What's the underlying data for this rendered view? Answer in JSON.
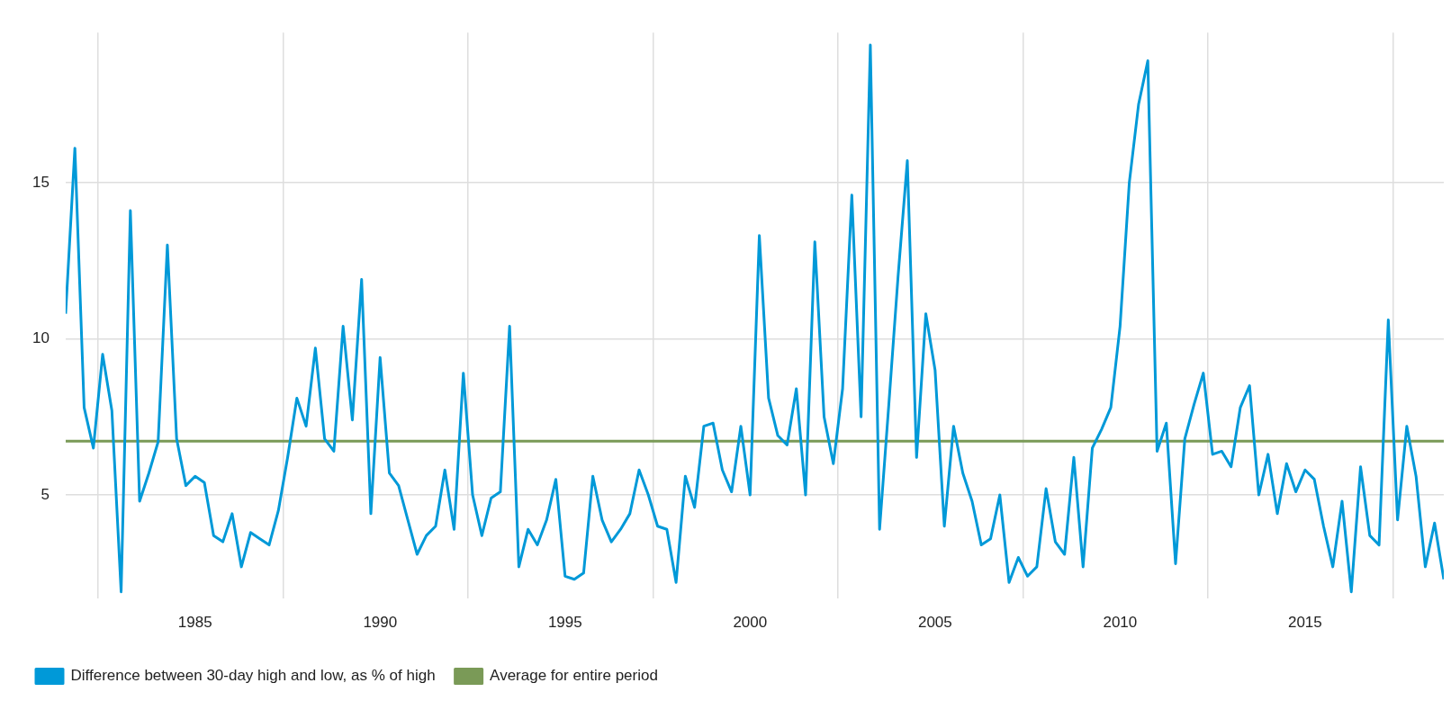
{
  "chart_data": {
    "type": "line",
    "xlim": [
      1981.5,
      2018.75
    ],
    "ylim": [
      1.7,
      19.8
    ],
    "xticks": [
      {
        "value": 1982.375,
        "label": null
      },
      {
        "value": 1985,
        "label": "1985"
      },
      {
        "value": 1987.375,
        "label": null
      },
      {
        "value": 1990,
        "label": "1990"
      },
      {
        "value": 1992.375,
        "label": null
      },
      {
        "value": 1995,
        "label": "1995"
      },
      {
        "value": 1997.375,
        "label": null
      },
      {
        "value": 2000,
        "label": "2000"
      },
      {
        "value": 2002.375,
        "label": null
      },
      {
        "value": 2005,
        "label": "2005"
      },
      {
        "value": 2007.375,
        "label": null
      },
      {
        "value": 2010,
        "label": "2010"
      },
      {
        "value": 2012.375,
        "label": null
      },
      {
        "value": 2015,
        "label": "2015"
      },
      {
        "value": 2017.375,
        "label": null
      }
    ],
    "yticks": [
      5,
      10,
      15
    ],
    "grid": true,
    "legend": "bottom left",
    "series": [
      {
        "name": "Difference between 30-day high and low, as % of high",
        "color": "#0099d8",
        "x": [
          1981.5,
          1981.75,
          1982,
          1982.25,
          1982.5,
          1982.75,
          1983,
          1983.25,
          1983.5,
          1983.75,
          1984,
          1984.25,
          1984.5,
          1984.75,
          1985,
          1985.25,
          1985.5,
          1985.75,
          1986,
          1986.25,
          1986.5,
          1986.75,
          1987,
          1987.25,
          1987.5,
          1987.75,
          1988,
          1988.25,
          1988.5,
          1988.75,
          1989,
          1989.25,
          1989.5,
          1989.75,
          1990,
          1990.25,
          1990.5,
          1990.75,
          1991,
          1991.25,
          1991.5,
          1991.75,
          1992,
          1992.25,
          1992.5,
          1992.75,
          1993,
          1993.25,
          1993.5,
          1993.75,
          1994,
          1994.25,
          1994.5,
          1994.75,
          1995,
          1995.25,
          1995.5,
          1995.75,
          1996,
          1996.25,
          1996.5,
          1996.75,
          1997,
          1997.25,
          1997.5,
          1997.75,
          1998,
          1998.25,
          1998.5,
          1998.75,
          1999,
          1999.25,
          1999.5,
          1999.75,
          2000,
          2000.25,
          2000.5,
          2000.75,
          2001,
          2001.25,
          2001.5,
          2001.75,
          2002,
          2002.25,
          2002.5,
          2002.75,
          2003,
          2003.25,
          2003.5,
          2003.75,
          2004,
          2004.25,
          2004.5,
          2004.75,
          2005,
          2005.25,
          2005.5,
          2005.75,
          2006,
          2006.25,
          2006.5,
          2006.75,
          2007,
          2007.25,
          2007.5,
          2007.75,
          2008,
          2008.25,
          2008.5,
          2008.75,
          2009,
          2009.25,
          2009.5,
          2009.75,
          2010,
          2010.25,
          2010.5,
          2010.75,
          2011,
          2011.25,
          2011.5,
          2011.75,
          2012,
          2012.25,
          2012.5,
          2012.75,
          2013,
          2013.25,
          2013.5,
          2013.75,
          2014,
          2014.25,
          2014.5,
          2014.75,
          2015,
          2015.25,
          2015.5,
          2015.75,
          2016,
          2016.25,
          2016.5,
          2016.75,
          2017,
          2017.25,
          2017.5,
          2017.75,
          2018,
          2018.25,
          2018.5,
          2018.75
        ],
        "values": [
          10.8,
          16.1,
          7.8,
          6.5,
          9.5,
          7.7,
          1.9,
          14.1,
          4.8,
          5.7,
          6.7,
          13.0,
          6.8,
          5.3,
          5.6,
          5.4,
          3.7,
          3.5,
          4.4,
          2.7,
          3.8,
          3.6,
          3.4,
          4.5,
          6.2,
          8.1,
          7.2,
          9.7,
          6.8,
          6.4,
          10.4,
          7.4,
          11.9,
          4.4,
          9.4,
          5.7,
          5.3,
          4.2,
          3.1,
          3.7,
          4.0,
          5.8,
          3.9,
          8.9,
          5.0,
          3.7,
          4.9,
          5.1,
          10.4,
          2.7,
          3.9,
          3.4,
          4.2,
          5.5,
          2.4,
          2.3,
          2.5,
          5.6,
          4.2,
          3.5,
          3.9,
          4.4,
          5.8,
          5.0,
          4.0,
          3.9,
          2.2,
          5.6,
          4.6,
          7.2,
          7.3,
          5.8,
          5.1,
          7.2,
          5.0,
          13.3,
          8.1,
          6.9,
          6.6,
          8.4,
          5.0,
          13.1,
          7.5,
          6.0,
          8.4,
          14.6,
          7.5,
          19.4,
          3.9,
          7.9,
          12.0,
          15.7,
          6.2,
          10.8,
          9.0,
          4.0,
          7.2,
          5.7,
          4.8,
          3.4,
          3.6,
          5.0,
          2.2,
          3.0,
          2.4,
          2.7,
          5.2,
          3.5,
          3.1,
          6.2,
          2.7,
          6.5,
          7.1,
          7.8,
          10.4,
          15.0,
          17.5,
          18.9,
          6.4,
          7.3,
          2.8,
          6.8,
          7.9,
          8.9,
          6.3,
          6.4,
          5.9,
          7.8,
          8.5,
          5.0,
          6.3,
          4.4,
          6.0,
          5.1,
          5.8,
          5.5,
          4.0,
          2.7,
          4.8,
          1.9,
          5.9,
          3.7,
          3.4,
          10.6,
          4.2,
          7.2,
          5.6,
          2.7,
          4.1,
          2.3
        ]
      },
      {
        "name": "Average for entire period",
        "color": "#7a9a57",
        "x": [
          1981.5,
          2018.75
        ],
        "values": [
          6.72,
          6.72
        ]
      }
    ]
  }
}
